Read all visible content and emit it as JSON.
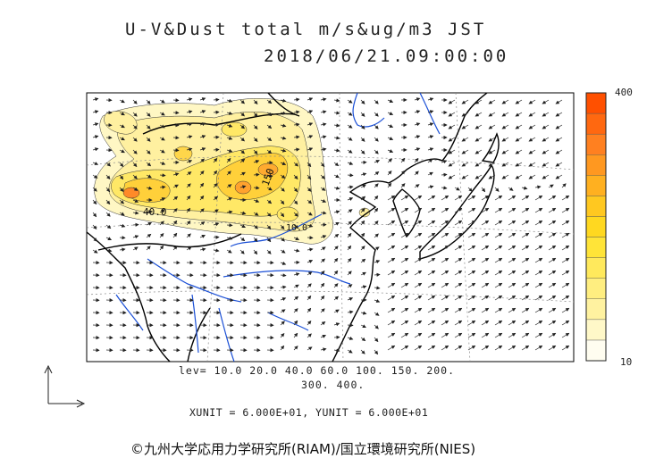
{
  "title": {
    "line1": "U-V&Dust total m/s&ug/m3 JST",
    "line2": "2018/06/21.09:00:00"
  },
  "legend": {
    "levels_line1": "lev= 10.0 20.0 40.0 60.0 100. 150. 200.",
    "levels_line2": "300. 400.",
    "units": "XUNIT = 6.000E+01, YUNIT = 6.000E+01"
  },
  "colorbar": {
    "max_label": "400",
    "min_label": "10",
    "colors": [
      "#fffdf0",
      "#fff8c8",
      "#fff2a0",
      "#ffee80",
      "#ffe95c",
      "#ffe438",
      "#ffd820",
      "#ffc820",
      "#ffb020",
      "#ff9820",
      "#ff8020",
      "#ff6810",
      "#ff5000"
    ]
  },
  "contour_labels": [
    "40.0",
    "150",
    "10.0"
  ],
  "credit": "©九州大学応用力学研究所(RIAM)/国立環境研究所(NIES)",
  "colors": {
    "coastline": "#000000",
    "river": "#1a4fd6",
    "grid": "#888888",
    "dust_low": "#fff4b0",
    "dust_mid": "#ffe54a",
    "dust_high": "#ff9a2a"
  }
}
